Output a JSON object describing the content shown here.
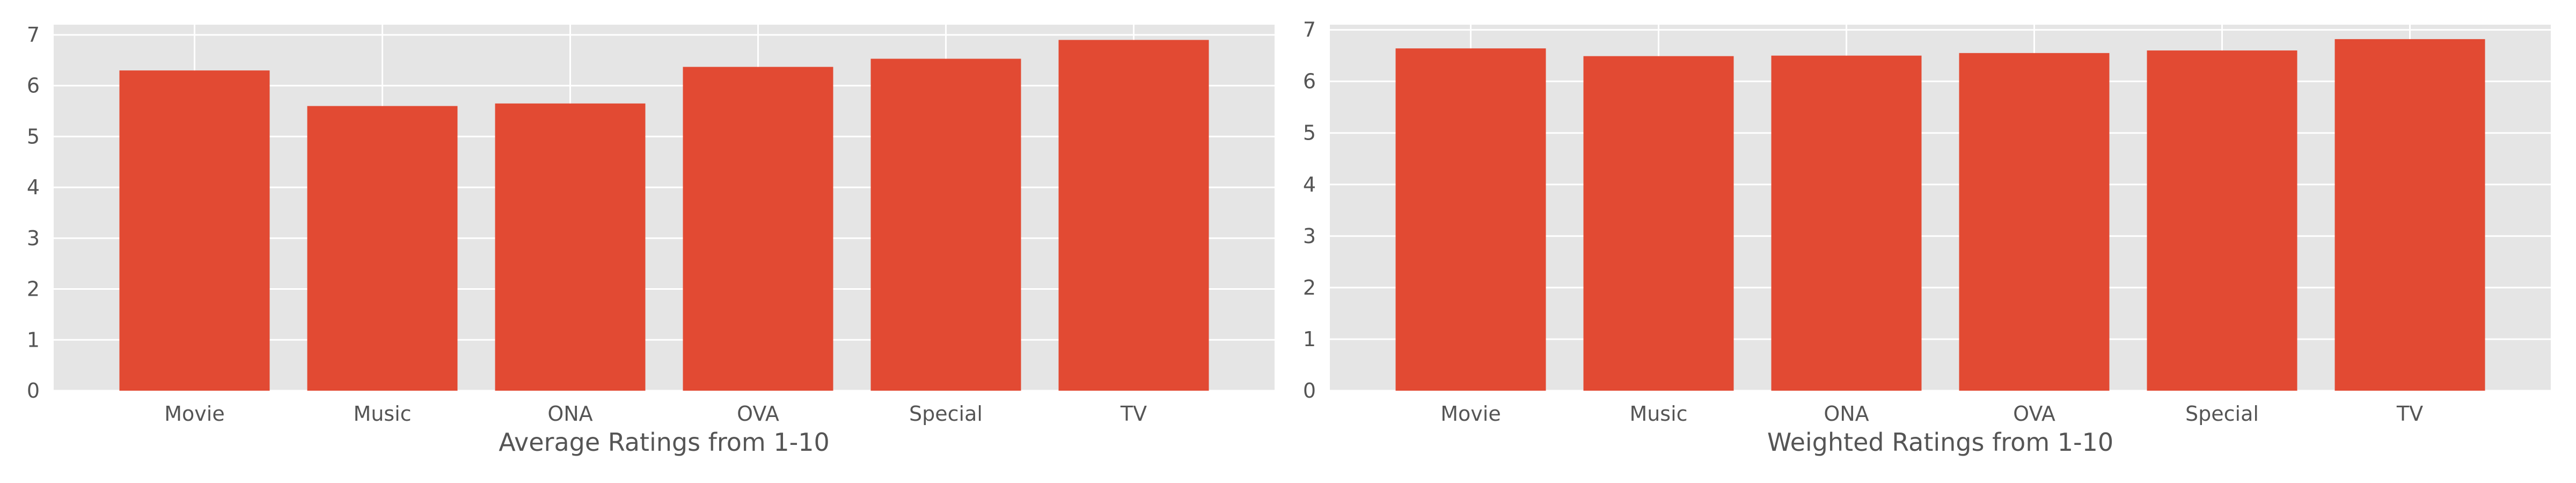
{
  "chart_data": [
    {
      "type": "bar",
      "categories": [
        "Movie",
        "Music",
        "ONA",
        "OVA",
        "Special",
        "TV"
      ],
      "values": [
        6.3,
        5.6,
        5.65,
        6.37,
        6.53,
        6.9
      ],
      "xlabel": "Average Ratings from 1-10",
      "ylabel": "",
      "ylim": [
        0,
        7.2
      ],
      "yticks": [
        0,
        1,
        2,
        3,
        4,
        5,
        6,
        7
      ],
      "grid": true,
      "bar_color": "#E24A33",
      "background_color": "#E5E5E5"
    },
    {
      "type": "bar",
      "categories": [
        "Movie",
        "Music",
        "ONA",
        "OVA",
        "Special",
        "TV"
      ],
      "values": [
        6.64,
        6.49,
        6.5,
        6.55,
        6.6,
        6.82
      ],
      "xlabel": "Weighted Ratings from 1-10",
      "ylabel": "",
      "ylim": [
        0,
        7.1
      ],
      "yticks": [
        0,
        1,
        2,
        3,
        4,
        5,
        6,
        7
      ],
      "grid": true,
      "bar_color": "#E24A33",
      "background_color": "#E5E5E5"
    }
  ]
}
